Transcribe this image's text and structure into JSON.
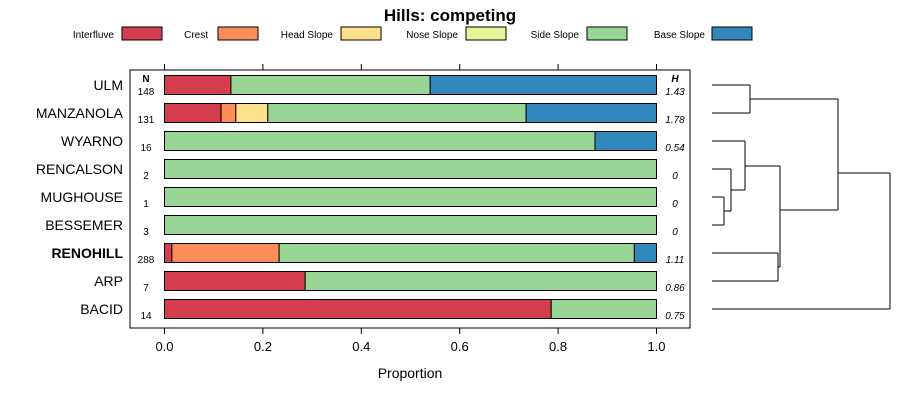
{
  "chart_data": {
    "type": "stacked-bar-horizontal",
    "title": "Hills: competing",
    "xlabel": "Proportion",
    "xlim": [
      0,
      1
    ],
    "xticks": [
      "0.0",
      "0.2",
      "0.4",
      "0.6",
      "0.8",
      "1.0"
    ],
    "n_header": "N",
    "h_header": "H",
    "series": [
      {
        "name": "Interfluve",
        "color": "#d53e4f"
      },
      {
        "name": "Crest",
        "color": "#fc8d59"
      },
      {
        "name": "Head Slope",
        "color": "#fee08b"
      },
      {
        "name": "Nose Slope",
        "color": "#e6f598"
      },
      {
        "name": "Side Slope",
        "color": "#99d594"
      },
      {
        "name": "Base Slope",
        "color": "#3288bd"
      }
    ],
    "rows": [
      {
        "label": "ULM",
        "n": "148",
        "h": "1.43",
        "bold": false,
        "values": [
          0.135,
          0,
          0,
          0,
          0.405,
          0.46
        ]
      },
      {
        "label": "MANZANOLA",
        "n": "131",
        "h": "1.78",
        "bold": false,
        "values": [
          0.115,
          0.03,
          0.065,
          0,
          0.525,
          0.265
        ]
      },
      {
        "label": "WYARNO",
        "n": "16",
        "h": "0.54",
        "bold": false,
        "values": [
          0,
          0,
          0,
          0,
          0.875,
          0.125
        ]
      },
      {
        "label": "RENCALSON",
        "n": "2",
        "h": "0",
        "bold": false,
        "values": [
          0,
          0,
          0,
          0,
          1,
          0
        ]
      },
      {
        "label": "MUGHOUSE",
        "n": "1",
        "h": "0",
        "bold": false,
        "values": [
          0,
          0,
          0,
          0,
          1,
          0
        ]
      },
      {
        "label": "BESSEMER",
        "n": "3",
        "h": "0",
        "bold": false,
        "values": [
          0,
          0,
          0,
          0,
          1,
          0
        ]
      },
      {
        "label": "RENOHILL",
        "n": "288",
        "h": "1.11",
        "bold": true,
        "values": [
          0.015,
          0.218,
          0,
          0,
          0.722,
          0.045
        ]
      },
      {
        "label": "ARP",
        "n": "7",
        "h": "0.86",
        "bold": false,
        "values": [
          0.286,
          0,
          0,
          0,
          0.714,
          0
        ]
      },
      {
        "label": "BACID",
        "n": "14",
        "h": "0.75",
        "bold": false,
        "values": [
          0.786,
          0,
          0,
          0,
          0.214,
          0
        ]
      }
    ],
    "dendrogram": {
      "description": "hierarchical clustering of rows",
      "merges": [
        {
          "a": "MUGHOUSE",
          "b": "BESSEMER",
          "height": 0.08
        },
        {
          "a": "RENCALSON",
          "b": "m1",
          "height": 0.12
        },
        {
          "a": "WYARNO",
          "b": "m2",
          "height": 0.2
        },
        {
          "a": "RENOHILL",
          "b": "m3",
          "height": 0.38
        },
        {
          "a": "ARP",
          "b": "m4",
          "height": 0.37
        },
        {
          "a": "ULM",
          "b": "MANZANOLA",
          "height": 0.25
        },
        {
          "a": "m6",
          "b": "m5",
          "height": 0.73
        },
        {
          "a": "m7",
          "b": "BACID",
          "height": 1.0
        }
      ]
    }
  }
}
